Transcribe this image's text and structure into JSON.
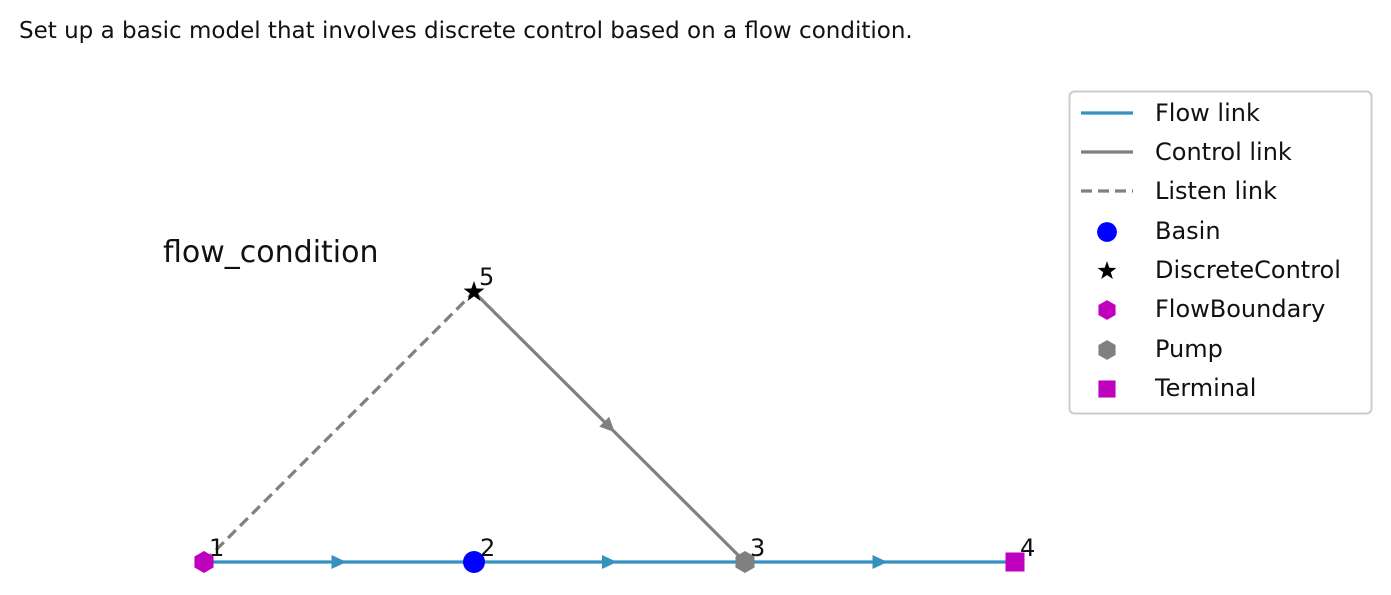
{
  "caption": "Set up a basic model that involves discrete control based on a flow condition.",
  "diagram": {
    "title": "flow_condition",
    "colors": {
      "flow_link": "#3690c0",
      "control_link": "#808080",
      "listen_link": "#808080",
      "basin": "#0000ff",
      "discrete_control": "#000000",
      "flow_boundary": "#bf00bf",
      "pump": "#808080",
      "terminal": "#bf00bf"
    },
    "nodes": [
      {
        "id": "1",
        "label": "1",
        "type": "FlowBoundary",
        "marker": "hexagon",
        "color": "#bf00bf"
      },
      {
        "id": "2",
        "label": "2",
        "type": "Basin",
        "marker": "circle",
        "color": "#0000ff"
      },
      {
        "id": "3",
        "label": "3",
        "type": "Pump",
        "marker": "hexagon",
        "color": "#808080"
      },
      {
        "id": "4",
        "label": "4",
        "type": "Terminal",
        "marker": "square",
        "color": "#bf00bf"
      },
      {
        "id": "5",
        "label": "5",
        "type": "DiscreteControl",
        "marker": "star",
        "color": "#000000"
      }
    ],
    "edges": [
      {
        "from": "1",
        "to": "2",
        "kind": "flow"
      },
      {
        "from": "2",
        "to": "3",
        "kind": "flow"
      },
      {
        "from": "3",
        "to": "4",
        "kind": "flow"
      },
      {
        "from": "5",
        "to": "3",
        "kind": "control"
      },
      {
        "from": "1",
        "to": "5",
        "kind": "listen"
      }
    ]
  },
  "legend": {
    "placement": "top-right",
    "items": [
      {
        "label": "Flow link",
        "symbol": "solid-line",
        "color": "#3690c0"
      },
      {
        "label": "Control link",
        "symbol": "solid-line",
        "color": "#808080"
      },
      {
        "label": "Listen link",
        "symbol": "dashed-line",
        "color": "#808080"
      },
      {
        "label": "Basin",
        "symbol": "circle",
        "color": "#0000ff"
      },
      {
        "label": "DiscreteControl",
        "symbol": "star",
        "color": "#000000"
      },
      {
        "label": "FlowBoundary",
        "symbol": "hexagon",
        "color": "#bf00bf"
      },
      {
        "label": "Pump",
        "symbol": "hexagon",
        "color": "#808080"
      },
      {
        "label": "Terminal",
        "symbol": "square",
        "color": "#bf00bf"
      }
    ]
  }
}
